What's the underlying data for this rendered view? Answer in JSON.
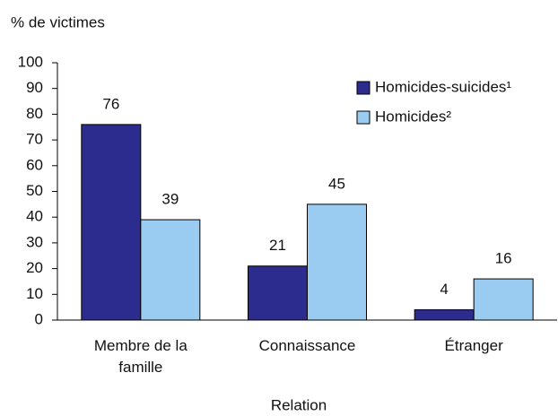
{
  "chart_data": {
    "type": "bar",
    "ylabel": "% de victimes",
    "xlabel": "Relation",
    "categories": [
      "Membre de la famille",
      "Connaissance",
      "Étranger"
    ],
    "series": [
      {
        "name": "Homicides-suicides¹",
        "color": "#2c2c8e",
        "values": [
          76,
          21,
          4
        ]
      },
      {
        "name": "Homicides²",
        "color": "#99ccf0",
        "values": [
          39,
          45,
          16
        ]
      }
    ],
    "ylim": [
      0,
      100
    ],
    "yticks": [
      0,
      10,
      20,
      30,
      40,
      50,
      60,
      70,
      80,
      90,
      100
    ],
    "legend": "upper right",
    "grid": false
  }
}
